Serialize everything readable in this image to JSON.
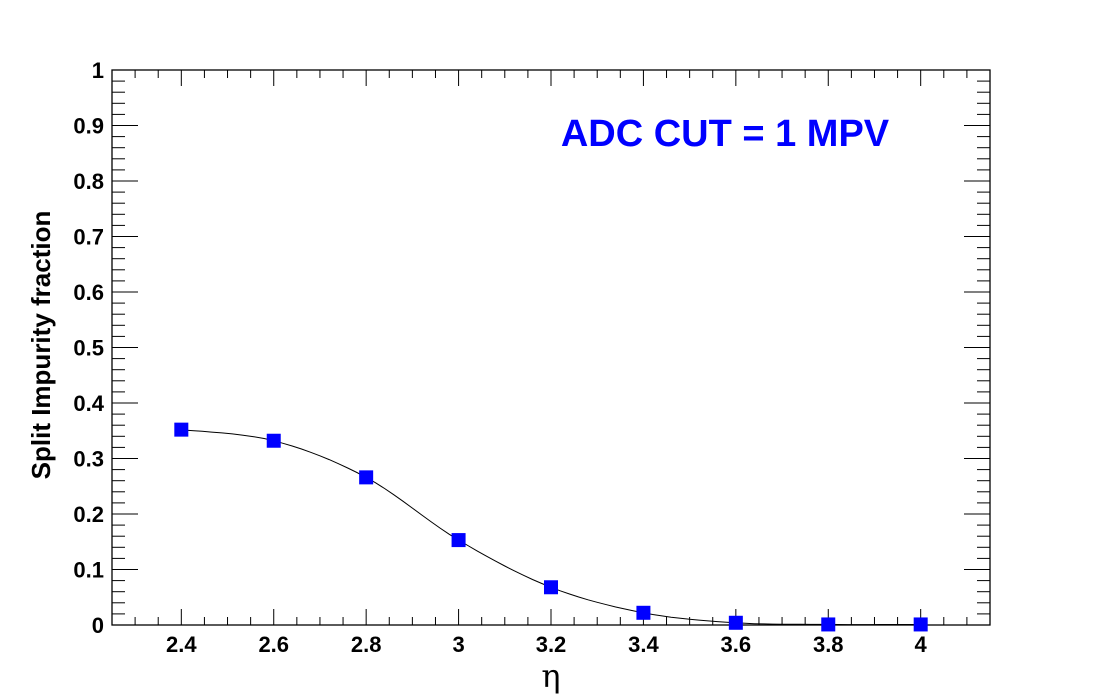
{
  "chart_data": {
    "type": "line",
    "title": "",
    "xlabel": "η",
    "ylabel": "Split Impurity fraction",
    "annotation": "ADC CUT = 1 MPV",
    "xlim": [
      2.25,
      4.15
    ],
    "ylim": [
      0,
      1
    ],
    "x_ticks": [
      2.4,
      2.6,
      2.8,
      3,
      3.2,
      3.4,
      3.6,
      3.8,
      4
    ],
    "x_tick_labels": [
      "2.4",
      "2.6",
      "2.8",
      "3",
      "3.2",
      "3.4",
      "3.6",
      "3.8",
      "4"
    ],
    "y_ticks": [
      0,
      0.1,
      0.2,
      0.3,
      0.4,
      0.5,
      0.6,
      0.7,
      0.8,
      0.9,
      1
    ],
    "y_tick_labels": [
      "0",
      "0.1",
      "0.2",
      "0.3",
      "0.4",
      "0.5",
      "0.6",
      "0.7",
      "0.8",
      "0.9",
      "1"
    ],
    "grid": false,
    "series": [
      {
        "x": [
          2.4,
          2.6,
          2.8,
          3.0,
          3.2,
          3.4,
          3.6,
          3.8,
          4.0
        ],
        "values": [
          0.352,
          0.332,
          0.266,
          0.153,
          0.068,
          0.022,
          0.004,
          0.001,
          0.001
        ]
      }
    ],
    "colors": {
      "marker": "#0000ff",
      "line": "#000000",
      "annotation": "#0000ff",
      "axes": "#000000"
    }
  }
}
